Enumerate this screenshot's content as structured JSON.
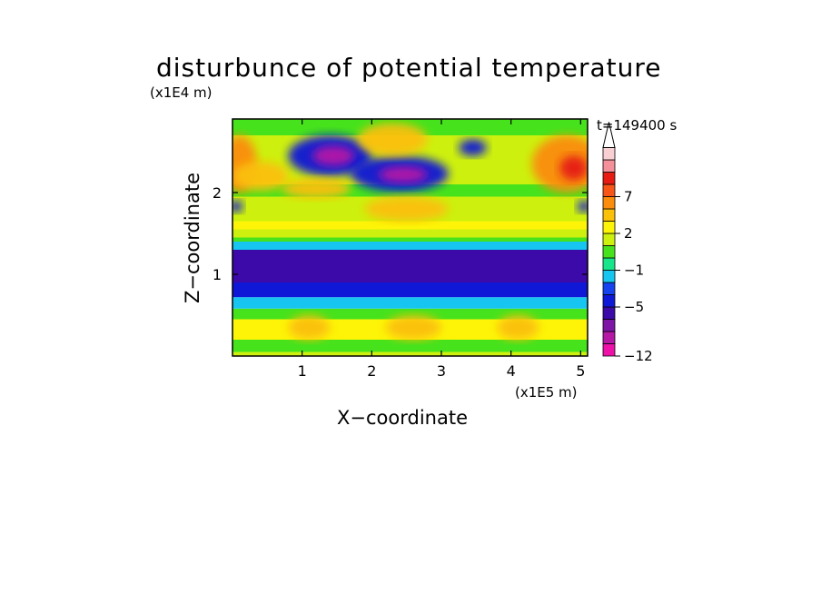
{
  "chart_data": {
    "type": "heatmap",
    "title": "disturbunce of potential temperature",
    "y_unit": "(x1E4 m)",
    "x_unit": "(x1E5 m)",
    "time_label": "t=149400 s",
    "xlabel": "X−coordinate",
    "ylabel": "Z−coordinate",
    "xlim": [
      0,
      5.1
    ],
    "ylim": [
      0,
      2.9
    ],
    "x_ticks": [
      1,
      2,
      3,
      4,
      5
    ],
    "y_ticks": [
      1,
      2
    ],
    "colorbar": {
      "levels": [
        -12,
        -10,
        -8,
        -7,
        -5,
        -4,
        -3,
        -1,
        0,
        1,
        2,
        3,
        5,
        7,
        8,
        10,
        12
      ],
      "labeled": [
        "7",
        "2",
        "−1",
        "−5",
        "−12"
      ],
      "colors": [
        "#ee11a9",
        "#b618a6",
        "#7e15a6",
        "#3b0aa8",
        "#1018d8",
        "#1743ef",
        "#16c6f0",
        "#16e58a",
        "#46e21c",
        "#cdf00e",
        "#fdf408",
        "#fbc008",
        "#fb8c0c",
        "#f85618",
        "#e51b14",
        "#f4909a",
        "#f8d0d2"
      ],
      "extend_max": true
    },
    "bands": [
      {
        "z_range": [
          0.0,
          0.05
        ],
        "value": 1
      },
      {
        "z_range": [
          0.05,
          0.2
        ],
        "value": 0.5
      },
      {
        "z_range": [
          0.2,
          0.45
        ],
        "value": 2
      },
      {
        "z_range": [
          0.45,
          0.58
        ],
        "value": 0.5
      },
      {
        "z_range": [
          0.58,
          0.72
        ],
        "value": -2
      },
      {
        "z_range": [
          0.72,
          0.9
        ],
        "value": -4.5
      },
      {
        "z_range": [
          0.9,
          1.3
        ],
        "value": -5.5
      },
      {
        "z_range": [
          1.3,
          1.4
        ],
        "value": -2
      },
      {
        "z_range": [
          1.4,
          1.45
        ],
        "value": 0
      },
      {
        "z_range": [
          1.45,
          1.55
        ],
        "value": 1
      },
      {
        "z_range": [
          1.55,
          1.65
        ],
        "value": 2
      },
      {
        "z_range": [
          1.65,
          1.95
        ],
        "value": 1.5
      },
      {
        "z_range": [
          1.95,
          2.1
        ],
        "value": 0.5
      },
      {
        "z_range": [
          2.1,
          2.4
        ],
        "value": 1.5
      },
      {
        "z_range": [
          2.4,
          2.7
        ],
        "value": 1
      },
      {
        "z_range": [
          2.7,
          2.9
        ],
        "value": 0.5
      }
    ],
    "features": [
      {
        "kind": "warm",
        "x": 0.1,
        "z": 2.35,
        "rx": 0.25,
        "rz": 0.35,
        "value": 6
      },
      {
        "kind": "warm",
        "x": 0.4,
        "z": 2.2,
        "rx": 0.4,
        "rz": 0.18,
        "value": 4
      },
      {
        "kind": "cold",
        "x": 1.4,
        "z": 2.45,
        "rx": 0.6,
        "rz": 0.25,
        "value": -4.5
      },
      {
        "kind": "cold",
        "x": 1.45,
        "z": 2.45,
        "rx": 0.3,
        "rz": 0.12,
        "value": -9
      },
      {
        "kind": "cold",
        "x": 2.4,
        "z": 2.23,
        "rx": 0.7,
        "rz": 0.22,
        "value": -4.5
      },
      {
        "kind": "cold",
        "x": 2.45,
        "z": 2.22,
        "rx": 0.35,
        "rz": 0.1,
        "value": -9
      },
      {
        "kind": "warm",
        "x": 2.3,
        "z": 2.65,
        "rx": 0.5,
        "rz": 0.2,
        "value": 4
      },
      {
        "kind": "warm",
        "x": 1.2,
        "z": 2.05,
        "rx": 0.5,
        "rz": 0.12,
        "value": 4
      },
      {
        "kind": "warm",
        "x": 2.5,
        "z": 1.8,
        "rx": 0.6,
        "rz": 0.15,
        "value": 4
      },
      {
        "kind": "warm",
        "x": 4.8,
        "z": 2.35,
        "rx": 0.5,
        "rz": 0.35,
        "value": 6
      },
      {
        "kind": "warm",
        "x": 4.9,
        "z": 2.3,
        "rx": 0.2,
        "rz": 0.15,
        "value": 9
      },
      {
        "kind": "cold",
        "x": 3.45,
        "z": 2.55,
        "rx": 0.2,
        "rz": 0.1,
        "value": -5
      },
      {
        "kind": "cold",
        "x": 0.05,
        "z": 1.83,
        "rx": 0.1,
        "rz": 0.07,
        "value": -5
      },
      {
        "kind": "cold",
        "x": 5.05,
        "z": 1.83,
        "rx": 0.1,
        "rz": 0.07,
        "value": -5
      },
      {
        "kind": "warm",
        "x": 1.1,
        "z": 0.35,
        "rx": 0.3,
        "rz": 0.15,
        "value": 4
      },
      {
        "kind": "warm",
        "x": 2.6,
        "z": 0.35,
        "rx": 0.4,
        "rz": 0.15,
        "value": 4
      },
      {
        "kind": "warm",
        "x": 4.1,
        "z": 0.35,
        "rx": 0.3,
        "rz": 0.15,
        "value": 4
      }
    ]
  }
}
